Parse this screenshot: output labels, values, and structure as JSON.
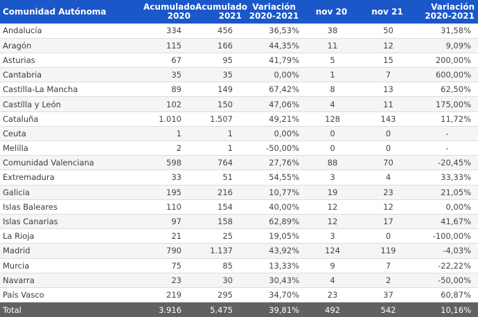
{
  "header": {
    "community": "Comunidad Autónoma",
    "acc2020_l1": "Acumulado",
    "acc2020_l2": "2020",
    "acc2021_l1": "Acumulado",
    "acc2021_l2": "2021",
    "var_l1": "Variación",
    "var_l2": "2020-2021",
    "nov20": "nov 20",
    "nov21": "nov 21",
    "var2_l1": "Variación",
    "var2_l2": "2020-2021"
  },
  "rows": [
    {
      "name": "Andalucía",
      "acc2020": "334",
      "acc2021": "456",
      "var": "36,53%",
      "nov20": "38",
      "nov21": "50",
      "var2": "31,58%"
    },
    {
      "name": "Aragón",
      "acc2020": "115",
      "acc2021": "166",
      "var": "44,35%",
      "nov20": "11",
      "nov21": "12",
      "var2": "9,09%"
    },
    {
      "name": "Asturias",
      "acc2020": "67",
      "acc2021": "95",
      "var": "41,79%",
      "nov20": "5",
      "nov21": "15",
      "var2": "200,00%"
    },
    {
      "name": "Cantabria",
      "acc2020": "35",
      "acc2021": "35",
      "var": "0,00%",
      "nov20": "1",
      "nov21": "7",
      "var2": "600,00%"
    },
    {
      "name": "Castilla-La Mancha",
      "acc2020": "89",
      "acc2021": "149",
      "var": "67,42%",
      "nov20": "8",
      "nov21": "13",
      "var2": "62,50%"
    },
    {
      "name": "Castilla y León",
      "acc2020": "102",
      "acc2021": "150",
      "var": "47,06%",
      "nov20": "4",
      "nov21": "11",
      "var2": "175,00%"
    },
    {
      "name": "Cataluña",
      "acc2020": "1.010",
      "acc2021": "1.507",
      "var": "49,21%",
      "nov20": "128",
      "nov21": "143",
      "var2": "11,72%"
    },
    {
      "name": "Ceuta",
      "acc2020": "1",
      "acc2021": "1",
      "var": "0,00%",
      "nov20": "0",
      "nov21": "0",
      "var2": "-"
    },
    {
      "name": "Melilla",
      "acc2020": "2",
      "acc2021": "1",
      "var": "-50,00%",
      "nov20": "0",
      "nov21": "0",
      "var2": "-"
    },
    {
      "name": "Comunidad Valenciana",
      "acc2020": "598",
      "acc2021": "764",
      "var": "27,76%",
      "nov20": "88",
      "nov21": "70",
      "var2": "-20,45%"
    },
    {
      "name": "Extremadura",
      "acc2020": "33",
      "acc2021": "51",
      "var": "54,55%",
      "nov20": "3",
      "nov21": "4",
      "var2": "33,33%"
    },
    {
      "name": "Galicia",
      "acc2020": "195",
      "acc2021": "216",
      "var": "10,77%",
      "nov20": "19",
      "nov21": "23",
      "var2": "21,05%"
    },
    {
      "name": "Islas Baleares",
      "acc2020": "110",
      "acc2021": "154",
      "var": "40,00%",
      "nov20": "12",
      "nov21": "12",
      "var2": "0,00%"
    },
    {
      "name": "Islas Canarias",
      "acc2020": "97",
      "acc2021": "158",
      "var": "62,89%",
      "nov20": "12",
      "nov21": "17",
      "var2": "41,67%"
    },
    {
      "name": "La Rioja",
      "acc2020": "21",
      "acc2021": "25",
      "var": "19,05%",
      "nov20": "3",
      "nov21": "0",
      "var2": "-100,00%"
    },
    {
      "name": "Madrid",
      "acc2020": "790",
      "acc2021": "1.137",
      "var": "43,92%",
      "nov20": "124",
      "nov21": "119",
      "var2": "-4,03%"
    },
    {
      "name": "Murcia",
      "acc2020": "75",
      "acc2021": "85",
      "var": "13,33%",
      "nov20": "9",
      "nov21": "7",
      "var2": "-22,22%"
    },
    {
      "name": "Navarra",
      "acc2020": "23",
      "acc2021": "30",
      "var": "30,43%",
      "nov20": "4",
      "nov21": "2",
      "var2": "-50,00%"
    },
    {
      "name": "País Vasco",
      "acc2020": "219",
      "acc2021": "295",
      "var": "34,70%",
      "nov20": "23",
      "nov21": "37",
      "var2": "60,87%"
    }
  ],
  "total": {
    "name": "Total",
    "acc2020": "3.916",
    "acc2021": "5.475",
    "var": "39,81%",
    "nov20": "492",
    "nov21": "542",
    "var2": "10,16%"
  },
  "colors": {
    "header_bg": "#1a57c9",
    "total_bg": "#616161",
    "alt_row_bg": "#f5f5f5"
  }
}
